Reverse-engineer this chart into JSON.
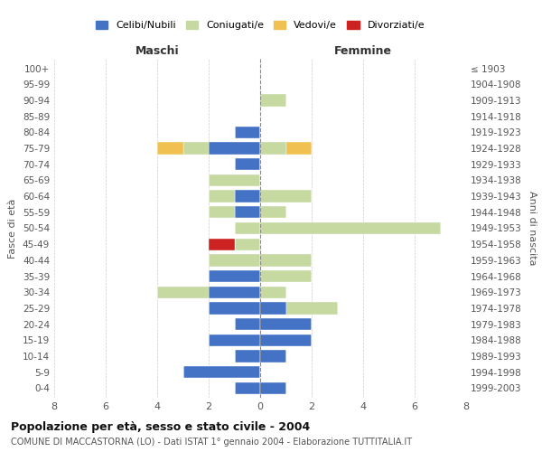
{
  "age_groups": [
    "0-4",
    "5-9",
    "10-14",
    "15-19",
    "20-24",
    "25-29",
    "30-34",
    "35-39",
    "40-44",
    "45-49",
    "50-54",
    "55-59",
    "60-64",
    "65-69",
    "70-74",
    "75-79",
    "80-84",
    "85-89",
    "90-94",
    "95-99",
    "100+"
  ],
  "birth_years": [
    "1999-2003",
    "1994-1998",
    "1989-1993",
    "1984-1988",
    "1979-1983",
    "1974-1978",
    "1969-1973",
    "1964-1968",
    "1959-1963",
    "1954-1958",
    "1949-1953",
    "1944-1948",
    "1939-1943",
    "1934-1938",
    "1929-1933",
    "1924-1928",
    "1919-1923",
    "1914-1918",
    "1909-1913",
    "1904-1908",
    "≤ 1903"
  ],
  "maschi": {
    "celibi": [
      1,
      3,
      1,
      2,
      1,
      2,
      2,
      2,
      0,
      0,
      0,
      1,
      1,
      0,
      1,
      2,
      1,
      0,
      0,
      0,
      0
    ],
    "coniugati": [
      0,
      0,
      0,
      0,
      0,
      0,
      2,
      0,
      2,
      1,
      1,
      1,
      1,
      2,
      0,
      1,
      0,
      0,
      0,
      0,
      0
    ],
    "vedovi": [
      0,
      0,
      0,
      0,
      0,
      0,
      0,
      0,
      0,
      0,
      0,
      0,
      0,
      0,
      0,
      1,
      0,
      0,
      0,
      0,
      0
    ],
    "divorziati": [
      0,
      0,
      0,
      0,
      0,
      0,
      0,
      0,
      0,
      1,
      0,
      0,
      0,
      0,
      0,
      0,
      0,
      0,
      0,
      0,
      0
    ]
  },
  "femmine": {
    "nubili": [
      1,
      0,
      1,
      2,
      2,
      1,
      0,
      0,
      0,
      0,
      0,
      0,
      0,
      0,
      0,
      0,
      0,
      0,
      0,
      0,
      0
    ],
    "coniugate": [
      0,
      0,
      0,
      0,
      0,
      2,
      1,
      2,
      2,
      0,
      7,
      1,
      2,
      0,
      0,
      1,
      0,
      0,
      1,
      0,
      0
    ],
    "vedove": [
      0,
      0,
      0,
      0,
      0,
      0,
      0,
      0,
      0,
      0,
      0,
      0,
      0,
      0,
      0,
      1,
      0,
      0,
      0,
      0,
      0
    ],
    "divorziate": [
      0,
      0,
      0,
      0,
      0,
      0,
      0,
      0,
      0,
      0,
      0,
      0,
      0,
      0,
      0,
      0,
      0,
      0,
      0,
      0,
      0
    ]
  },
  "colors": {
    "celibi_nubili": "#4472c4",
    "coniugati": "#c5d9a0",
    "vedovi": "#f0c050",
    "divorziati": "#cc2222"
  },
  "xlim": 8,
  "title": "Popolazione per età, sesso e stato civile - 2004",
  "subtitle": "COMUNE DI MACCASTORNA (LO) - Dati ISTAT 1° gennaio 2004 - Elaborazione TUTTITALIA.IT",
  "ylabel_left": "Fasce di età",
  "ylabel_right": "Anni di nascita",
  "xlabel_maschi": "Maschi",
  "xlabel_femmine": "Femmine",
  "legend_labels": [
    "Celibi/Nubili",
    "Coniugati/e",
    "Vedovi/e",
    "Divorziati/e"
  ],
  "background_color": "#ffffff"
}
